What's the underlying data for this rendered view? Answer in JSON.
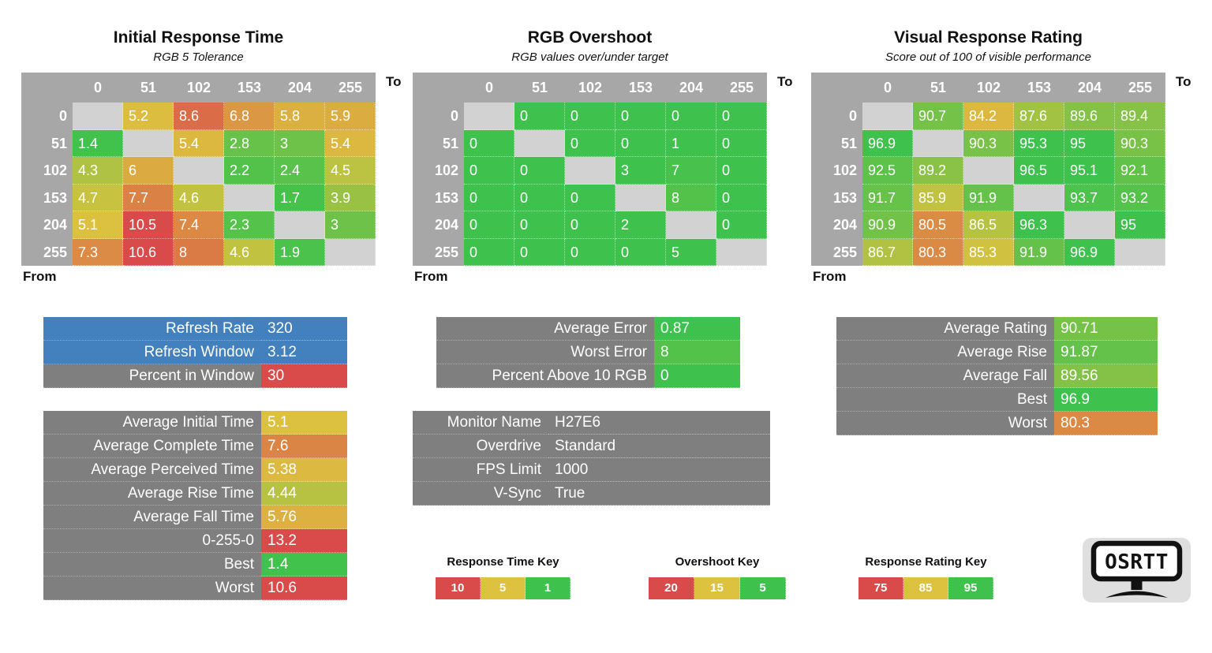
{
  "colors": {
    "green": "#3EC24D",
    "yellow": "#DCC23F",
    "red": "#D94B4B",
    "blue": "#4281BE",
    "panel_gray": "#7F7F7F",
    "header_gray": "#A7A7A7",
    "diagonal_gray": "#D2D2D2",
    "logo_bg": "#DFDFDF"
  },
  "scales": {
    "time": {
      "stops": [
        {
          "v": 1,
          "c": "#3EC24D"
        },
        {
          "v": 5,
          "c": "#DCC23F",
          "gamma": 1.7
        },
        {
          "v": 10,
          "c": "#D94B4B"
        }
      ]
    },
    "overshoot": {
      "stops": [
        {
          "v": 5,
          "c": "#3EC24D"
        },
        {
          "v": 15,
          "c": "#DCC23F",
          "gamma": 1.7
        },
        {
          "v": 20,
          "c": "#D94B4B"
        }
      ]
    },
    "rating": {
      "stops": [
        {
          "v": 75,
          "c": "#D94B4B"
        },
        {
          "v": 85,
          "c": "#DCC23F"
        },
        {
          "v": 95,
          "c": "#3EC24D",
          "gamma": 0.74
        }
      ]
    }
  },
  "axis": {
    "to": "To",
    "from": "From",
    "levels": [
      "0",
      "51",
      "102",
      "153",
      "204",
      "255"
    ]
  },
  "chart_data": [
    {
      "type": "heatmap",
      "title": "Initial Response Time",
      "subtitle": "RGB 5 Tolerance",
      "scale": "time",
      "x_levels": [
        "0",
        "51",
        "102",
        "153",
        "204",
        "255"
      ],
      "y_levels": [
        "0",
        "51",
        "102",
        "153",
        "204",
        "255"
      ],
      "rows": [
        [
          null,
          "5.2",
          "8.6",
          "6.8",
          "5.8",
          "5.9"
        ],
        [
          "1.4",
          null,
          "5.4",
          "2.8",
          "3",
          "5.4"
        ],
        [
          "4.3",
          "6",
          null,
          "2.2",
          "2.4",
          "4.5"
        ],
        [
          "4.7",
          "7.7",
          "4.6",
          null,
          "1.7",
          "3.9"
        ],
        [
          "5.1",
          "10.5",
          "7.4",
          "2.3",
          null,
          "3"
        ],
        [
          "7.3",
          "10.6",
          "8",
          "4.6",
          "1.9",
          null
        ]
      ]
    },
    {
      "type": "heatmap",
      "title": "RGB Overshoot",
      "subtitle": "RGB values over/under target",
      "scale": "overshoot",
      "x_levels": [
        "0",
        "51",
        "102",
        "153",
        "204",
        "255"
      ],
      "y_levels": [
        "0",
        "51",
        "102",
        "153",
        "204",
        "255"
      ],
      "rows": [
        [
          null,
          "0",
          "0",
          "0",
          "0",
          "0"
        ],
        [
          "0",
          null,
          "0",
          "0",
          "1",
          "0"
        ],
        [
          "0",
          "0",
          null,
          "3",
          "7",
          "0"
        ],
        [
          "0",
          "0",
          "0",
          null,
          "8",
          "0"
        ],
        [
          "0",
          "0",
          "0",
          "2",
          null,
          "0"
        ],
        [
          "0",
          "0",
          "0",
          "0",
          "5",
          null
        ]
      ]
    },
    {
      "type": "heatmap",
      "title": "Visual Response Rating",
      "subtitle": "Score out of 100 of visible performance",
      "scale": "rating",
      "x_levels": [
        "0",
        "51",
        "102",
        "153",
        "204",
        "255"
      ],
      "y_levels": [
        "0",
        "51",
        "102",
        "153",
        "204",
        "255"
      ],
      "rows": [
        [
          null,
          "90.7",
          "84.2",
          "87.6",
          "89.6",
          "89.4"
        ],
        [
          "96.9",
          null,
          "90.3",
          "95.3",
          "95",
          "90.3"
        ],
        [
          "92.5",
          "89.2",
          null,
          "96.5",
          "95.1",
          "92.1"
        ],
        [
          "91.7",
          "85.9",
          "91.9",
          null,
          "93.7",
          "93.2"
        ],
        [
          "90.9",
          "80.5",
          "86.5",
          "96.3",
          null,
          "95"
        ],
        [
          "86.7",
          "80.3",
          "85.3",
          "91.9",
          "96.9",
          null
        ]
      ]
    }
  ],
  "panels": [
    {
      "id": "refresh",
      "rows": [
        {
          "label": "Refresh Rate",
          "value": "320",
          "label_bg": "#4281BE",
          "value_bg": "#4281BE"
        },
        {
          "label": "Refresh Window",
          "value": "3.12",
          "label_bg": "#4281BE",
          "value_bg": "#4281BE"
        },
        {
          "label": "Percent in Window",
          "value": "30",
          "value_bg": "#D94B4B"
        }
      ]
    },
    {
      "id": "time_stats",
      "scale": "time",
      "rows": [
        {
          "label": "Average Initial Time",
          "value": "5.1"
        },
        {
          "label": "Average Complete Time",
          "value": "7.6"
        },
        {
          "label": "Average Perceived Time",
          "value": "5.38"
        },
        {
          "label": "Average Rise Time",
          "value": "4.44"
        },
        {
          "label": "Average Fall Time",
          "value": "5.76"
        },
        {
          "label": "0-255-0",
          "value": "13.2"
        },
        {
          "label": "Best",
          "value": "1.4"
        },
        {
          "label": "Worst",
          "value": "10.6"
        }
      ]
    },
    {
      "id": "overshoot_stats",
      "scale": "overshoot",
      "rows": [
        {
          "label": "Average Error",
          "value": "0.87"
        },
        {
          "label": "Worst Error",
          "value": "8"
        },
        {
          "label": "Percent Above 10 RGB",
          "value": "0"
        }
      ]
    },
    {
      "id": "monitor_info",
      "value_bg": "#7F7F7F",
      "rows": [
        {
          "label": "Monitor Name",
          "value": "H27E6"
        },
        {
          "label": "Overdrive",
          "value": "Standard"
        },
        {
          "label": "FPS Limit",
          "value": "1000"
        },
        {
          "label": "V-Sync",
          "value": "True"
        }
      ]
    },
    {
      "id": "rating_stats",
      "scale": "rating",
      "rows": [
        {
          "label": "Average Rating",
          "value": "90.71"
        },
        {
          "label": "Average Rise",
          "value": "91.87"
        },
        {
          "label": "Average Fall",
          "value": "89.56"
        },
        {
          "label": "Best",
          "value": "96.9"
        },
        {
          "label": "Worst",
          "value": "80.3"
        }
      ]
    }
  ],
  "keys": [
    {
      "title": "Response Time Key",
      "cells": [
        {
          "label": "10",
          "color": "#D94B4B"
        },
        {
          "label": "5",
          "color": "#DCC23F"
        },
        {
          "label": "1",
          "color": "#3EC24D"
        }
      ]
    },
    {
      "title": "Overshoot Key",
      "cells": [
        {
          "label": "20",
          "color": "#D94B4B"
        },
        {
          "label": "15",
          "color": "#DCC23F"
        },
        {
          "label": "5",
          "color": "#3EC24D"
        }
      ]
    },
    {
      "title": "Response Rating Key",
      "cells": [
        {
          "label": "75",
          "color": "#D94B4B"
        },
        {
          "label": "85",
          "color": "#DCC23F"
        },
        {
          "label": "95",
          "color": "#3EC24D"
        }
      ]
    }
  ],
  "logo": {
    "text": "OSRTT"
  }
}
